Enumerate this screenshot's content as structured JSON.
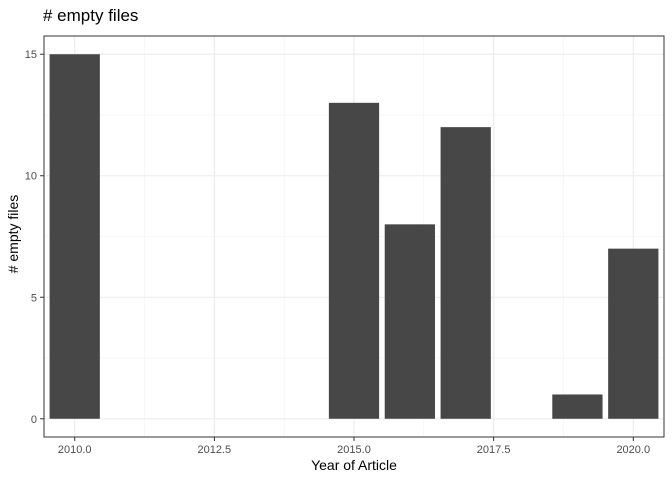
{
  "chart_data": {
    "type": "bar",
    "title": "# empty files",
    "xlabel": "Year of Article",
    "ylabel": "# empty files",
    "x": [
      2010,
      2015,
      2016,
      2017,
      2019,
      2020
    ],
    "values": [
      15,
      13,
      8,
      12,
      1,
      7
    ],
    "xlim": [
      2009.45,
      2020.55
    ],
    "ylim": [
      -0.75,
      15.75
    ],
    "x_ticks": [
      2010,
      2012.5,
      2015,
      2017.5,
      2020
    ],
    "x_tick_labels": [
      "2010.0",
      "2012.5",
      "2015.0",
      "2017.5",
      "2020.0"
    ],
    "y_ticks": [
      0,
      5,
      10,
      15
    ],
    "y_tick_labels": [
      "0",
      "5",
      "10",
      "15"
    ],
    "grid": true,
    "bar_color": "#474747"
  }
}
